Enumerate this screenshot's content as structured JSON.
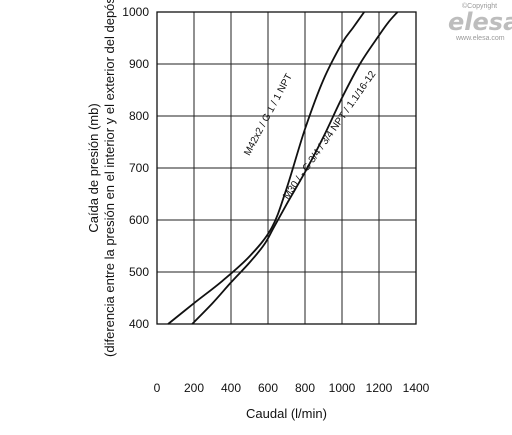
{
  "brand": {
    "copyright": "©Copyright",
    "logo": "elesa",
    "url": "www.elesa.com",
    "color": "#bdbdbd"
  },
  "chart_data": {
    "type": "line",
    "xlabel": "Caudal (l/min)",
    "ylabel": "Caída de presión (mb)",
    "ylabel_sub": "(diferencia entre la presión en el interior y el exterior del depósito)",
    "xlim": [
      0,
      1400
    ],
    "ylim": [
      400,
      1000
    ],
    "x_ticks": [
      0,
      200,
      400,
      600,
      800,
      1000,
      1200,
      1400
    ],
    "y_ticks": [
      400,
      500,
      600,
      700,
      800,
      900,
      1000
    ],
    "grid": true,
    "line_color": "#111111",
    "series": [
      {
        "name": "M42x2 / G 1 / 1 NPT",
        "points": [
          [
            60,
            400
          ],
          [
            200,
            440
          ],
          [
            350,
            482
          ],
          [
            500,
            530
          ],
          [
            620,
            585
          ],
          [
            700,
            660
          ],
          [
            800,
            775
          ],
          [
            900,
            870
          ],
          [
            1000,
            940
          ],
          [
            1060,
            970
          ],
          [
            1120,
            1000
          ]
        ]
      },
      {
        "name": "M30 / - G 3/4 / 3/4 NPT / 1.1/16-12",
        "points": [
          [
            190,
            400
          ],
          [
            300,
            440
          ],
          [
            400,
            480
          ],
          [
            500,
            518
          ],
          [
            580,
            553
          ],
          [
            630,
            585
          ],
          [
            700,
            630
          ],
          [
            800,
            692
          ],
          [
            900,
            760
          ],
          [
            1000,
            835
          ],
          [
            1100,
            902
          ],
          [
            1200,
            955
          ],
          [
            1250,
            980
          ],
          [
            1300,
            1000
          ]
        ]
      }
    ]
  }
}
